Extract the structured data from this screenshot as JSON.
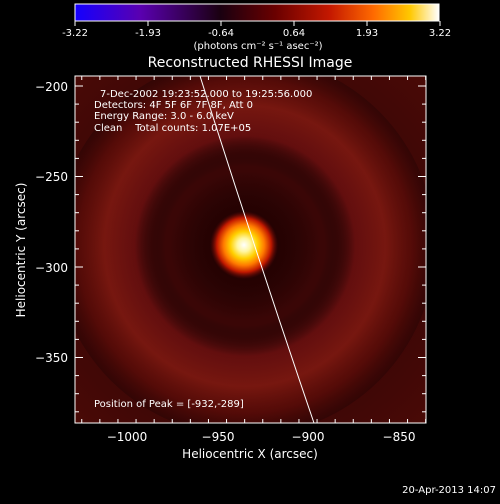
{
  "colorbar": {
    "ticks": [
      "-3.22",
      "-1.93",
      "-0.64",
      "0.64",
      "1.93",
      "3.22"
    ],
    "units": "(photons cm⁻² s⁻¹ asec⁻²)",
    "stops": [
      "#1a00ff",
      "#6a00a8",
      "#000000",
      "#7a0000",
      "#d02000",
      "#ff7a00",
      "#ffd000",
      "#ffffff"
    ]
  },
  "plot": {
    "title": "Reconstructed RHESSI Image",
    "xlabel": "Heliocentric X (arcsec)",
    "ylabel": "Heliocentric Y (arcsec)",
    "xticks": [
      "−1000",
      "−950",
      "−900",
      "−850"
    ],
    "yticks": [
      "−200",
      "−250",
      "−300",
      "−350"
    ],
    "xlim": [
      -1025,
      -832
    ],
    "ylim": [
      -387,
      -192
    ]
  },
  "annotations": {
    "time_range": "7-Dec-2002 19:23:52.000 to 19:25:56.000",
    "detectors": "Detectors: 4F 5F 6F 7F 8F, Att 0",
    "energy": "Energy Range: 3.0 - 6.0 keV",
    "clean": "Clean    Total counts: 1.07E+05",
    "peak": "Position of Peak = [-932,-289]"
  },
  "footer": {
    "timestamp": "20-Apr-2013 14:07"
  },
  "source": {
    "peak_x": -932,
    "peak_y": -289
  }
}
